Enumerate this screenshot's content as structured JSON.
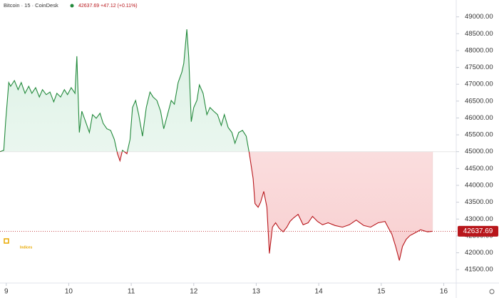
{
  "chart_data": {
    "type": "baseline-line",
    "title": "Bitcoin · 15 · CoinDesk",
    "last_value": 42637.69,
    "change_label": "+47.12 (+0.11%)",
    "logo_text": "Indices",
    "baseline": 45000,
    "up_color": "#238a3c",
    "down_color": "#b8161b",
    "x": [
      8.9,
      8.96,
      8.99,
      9.04,
      9.07,
      9.13,
      9.19,
      9.24,
      9.3,
      9.36,
      9.41,
      9.47,
      9.53,
      9.58,
      9.64,
      9.7,
      9.76,
      9.81,
      9.87,
      9.93,
      9.98,
      10.04,
      10.1,
      10.13,
      10.17,
      10.21,
      10.27,
      10.33,
      10.38,
      10.44,
      10.5,
      10.55,
      10.61,
      10.67,
      10.73,
      10.78,
      10.82,
      10.86,
      10.93,
      10.98,
      11.02,
      11.07,
      11.12,
      11.18,
      11.24,
      11.3,
      11.35,
      11.41,
      11.47,
      11.52,
      11.58,
      11.64,
      11.69,
      11.75,
      11.81,
      11.84,
      11.89,
      11.92,
      11.96,
      12.0,
      12.05,
      12.09,
      12.15,
      12.21,
      12.26,
      12.32,
      12.38,
      12.44,
      12.49,
      12.55,
      12.61,
      12.66,
      12.72,
      12.78,
      12.84,
      12.89,
      12.95,
      12.98,
      13.03,
      13.07,
      13.12,
      13.17,
      13.21,
      13.26,
      13.31,
      13.37,
      13.43,
      13.49,
      13.54,
      13.6,
      13.67,
      13.75,
      13.83,
      13.9,
      13.98,
      14.06,
      14.15,
      14.26,
      14.38,
      14.49,
      14.6,
      14.72,
      14.83,
      14.95,
      15.06,
      15.12,
      15.17,
      15.23,
      15.29,
      15.34,
      15.4,
      15.46,
      15.52,
      15.63,
      15.74,
      15.82
    ],
    "values": [
      45000,
      45040,
      45890,
      47050,
      46940,
      47110,
      46840,
      47050,
      46730,
      46940,
      46730,
      46900,
      46620,
      46840,
      46690,
      46770,
      46480,
      46730,
      46620,
      46840,
      46690,
      46900,
      46730,
      47830,
      45570,
      46200,
      45890,
      45570,
      46100,
      45990,
      46140,
      45840,
      45680,
      45630,
      45360,
      44940,
      44730,
      45040,
      44940,
      45360,
      46310,
      46520,
      46100,
      45460,
      46310,
      46770,
      46620,
      46520,
      46200,
      45680,
      46100,
      46520,
      46410,
      47050,
      47360,
      47620,
      48630,
      47790,
      45890,
      46310,
      46520,
      46980,
      46730,
      46100,
      46310,
      46200,
      46100,
      45780,
      46100,
      45720,
      45570,
      45250,
      45570,
      45630,
      45460,
      44940,
      44200,
      43460,
      43350,
      43500,
      43820,
      43350,
      41980,
      42760,
      42890,
      42720,
      42620,
      42760,
      42930,
      43040,
      43140,
      42830,
      42890,
      43080,
      42930,
      42830,
      42890,
      42810,
      42760,
      42830,
      42970,
      42810,
      42760,
      42890,
      42930,
      42720,
      42550,
      42190,
      41770,
      42190,
      42400,
      42510,
      42570,
      42680,
      42620,
      42637.69
    ],
    "xlim": [
      8.9,
      16.2
    ],
    "ylim": [
      41250,
      49500
    ],
    "xticks": [
      9,
      10,
      11,
      12,
      13,
      14,
      15,
      16
    ],
    "yticks": [
      {
        "value": 41500,
        "label": "41500.00"
      },
      {
        "value": 42000,
        "label": "42000.00"
      },
      {
        "value": 42500,
        "label": "42500.00"
      },
      {
        "value": 43000,
        "label": "43000.00"
      },
      {
        "value": 43500,
        "label": "43500.00"
      },
      {
        "value": 44000,
        "label": "44000.00"
      },
      {
        "value": 44500,
        "label": "44500.00"
      },
      {
        "value": 45000,
        "label": "45000.00"
      },
      {
        "value": 45500,
        "label": "45500.00"
      },
      {
        "value": 46000,
        "label": "46000.00"
      },
      {
        "value": 46500,
        "label": "46500.00"
      },
      {
        "value": 47000,
        "label": "47000.00"
      },
      {
        "value": 47500,
        "label": "47500.00"
      },
      {
        "value": 48000,
        "label": "48000.00"
      },
      {
        "value": 48500,
        "label": "48500.00"
      },
      {
        "value": 49000,
        "label": "49000.00"
      }
    ]
  }
}
